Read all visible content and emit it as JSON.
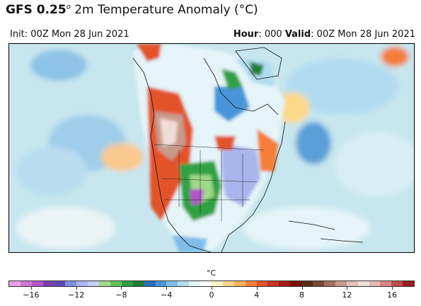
{
  "header": {
    "title_model": "GFS 0.25",
    "title_degree": "o",
    "title_rest": " 2m Temperature Anomaly (°C)",
    "init": "Init: 00Z Mon 28 Jun 2021",
    "hour_label": "Hour",
    "hour_value": ": 000  ",
    "valid_label": "Valid",
    "valid_value": ": 00Z Mon 28 Jun 2021"
  },
  "colorbar": {
    "unit": "°C",
    "range": [
      -18,
      18
    ],
    "tick_labels": [
      "−16",
      "−12",
      "−8",
      "−4",
      "0",
      "4",
      "8",
      "12",
      "16"
    ],
    "tick_values": [
      -16,
      -12,
      -8,
      -4,
      0,
      4,
      8,
      12,
      16
    ],
    "colors": [
      "#e8a0e6",
      "#d277d6",
      "#b455c8",
      "#7a3fb0",
      "#5b4ab8",
      "#7f8fe0",
      "#a9b6ee",
      "#c4cff4",
      "#9fd98b",
      "#5fc35a",
      "#2ea143",
      "#1d7f34",
      "#2a6fc4",
      "#4a95da",
      "#7fbde8",
      "#b1dcf0",
      "#e4f4f8",
      "#ffffff",
      "#fdf3c4",
      "#fcd98a",
      "#f9b15a",
      "#f47e37",
      "#e3522a",
      "#c9331f",
      "#a61a14",
      "#7d0c0c",
      "#5a2d1a",
      "#7a4a34",
      "#a0705c",
      "#c79b8c",
      "#e2c0b8",
      "#f1dcd8",
      "#e6b7b7",
      "#d88585",
      "#c14b4b",
      "#a01e1e"
    ]
  },
  "map": {
    "ocean_color": "#c7e6ef",
    "warm_color": "#e3522a",
    "cold_color": "#2ea143"
  }
}
